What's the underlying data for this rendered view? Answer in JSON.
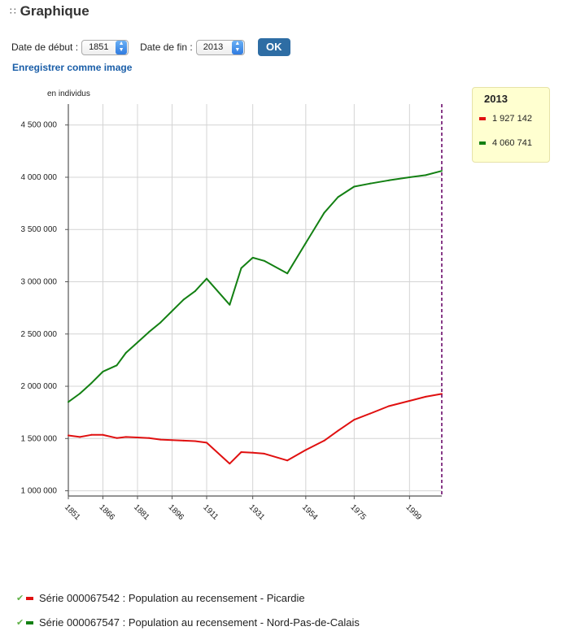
{
  "header": {
    "title": "Graphique",
    "grip_icon": "∷"
  },
  "controls": {
    "start_label": "Date de début :",
    "start_value": "1851",
    "end_label": "Date de fin :",
    "end_value": "2013",
    "ok_label": "OK"
  },
  "save_link": "Enregistrer comme image",
  "colors": {
    "picardie": "#e01010",
    "npdc": "#138013",
    "accent": "#2e6da4",
    "marker": "#6b0a6b"
  },
  "tooltip": {
    "year": "2013",
    "values": [
      "1 927 142",
      "4 060 741"
    ]
  },
  "series_legend": [
    {
      "label": "Série 000067542 : Population au recensement - Picardie"
    },
    {
      "label": "Série 000067547 : Population au recensement - Nord-Pas-de-Calais"
    }
  ],
  "chart_data": {
    "type": "line",
    "ylabel": "en individus",
    "ylim": [
      950000,
      4700000
    ],
    "xlim": [
      1851,
      2013
    ],
    "grid": true,
    "x_tick_labels": [
      "1851",
      "1866",
      "1881",
      "1896",
      "1911",
      "1931",
      "1954",
      "1975",
      "1999"
    ],
    "y_tick_labels": [
      "1 000 000",
      "1 500 000",
      "2 000 000",
      "2 500 000",
      "3 000 000",
      "3 500 000",
      "4 000 000",
      "4 500 000"
    ],
    "y_ticks": [
      1000000,
      1500000,
      2000000,
      2500000,
      3000000,
      3500000,
      4000000,
      4500000
    ],
    "marker_x": 2013,
    "series": [
      {
        "name": "Série 000067542 : Population au recensement - Picardie",
        "x": [
          1851,
          1856,
          1861,
          1866,
          1872,
          1876,
          1881,
          1886,
          1891,
          1896,
          1901,
          1906,
          1911,
          1921,
          1926,
          1931,
          1936,
          1946,
          1954,
          1962,
          1968,
          1975,
          1982,
          1990,
          1999,
          2006,
          2013
        ],
        "values": [
          1530000,
          1515000,
          1535000,
          1535000,
          1505000,
          1515000,
          1510000,
          1505000,
          1490000,
          1485000,
          1480000,
          1475000,
          1460000,
          1260000,
          1370000,
          1365000,
          1355000,
          1290000,
          1390000,
          1480000,
          1575000,
          1680000,
          1740000,
          1810000,
          1860000,
          1900000,
          1927142
        ]
      },
      {
        "name": "Série 000067547 : Population au recensement - Nord-Pas-de-Calais",
        "x": [
          1851,
          1856,
          1861,
          1866,
          1872,
          1876,
          1881,
          1886,
          1891,
          1896,
          1901,
          1906,
          1911,
          1921,
          1926,
          1931,
          1936,
          1946,
          1954,
          1962,
          1968,
          1975,
          1982,
          1990,
          1999,
          2006,
          2013
        ],
        "values": [
          1850000,
          1930000,
          2030000,
          2140000,
          2200000,
          2320000,
          2420000,
          2520000,
          2610000,
          2720000,
          2830000,
          2910000,
          3030000,
          2780000,
          3130000,
          3230000,
          3200000,
          3080000,
          3370000,
          3660000,
          3810000,
          3910000,
          3940000,
          3970000,
          4000000,
          4020000,
          4060741
        ]
      }
    ]
  }
}
